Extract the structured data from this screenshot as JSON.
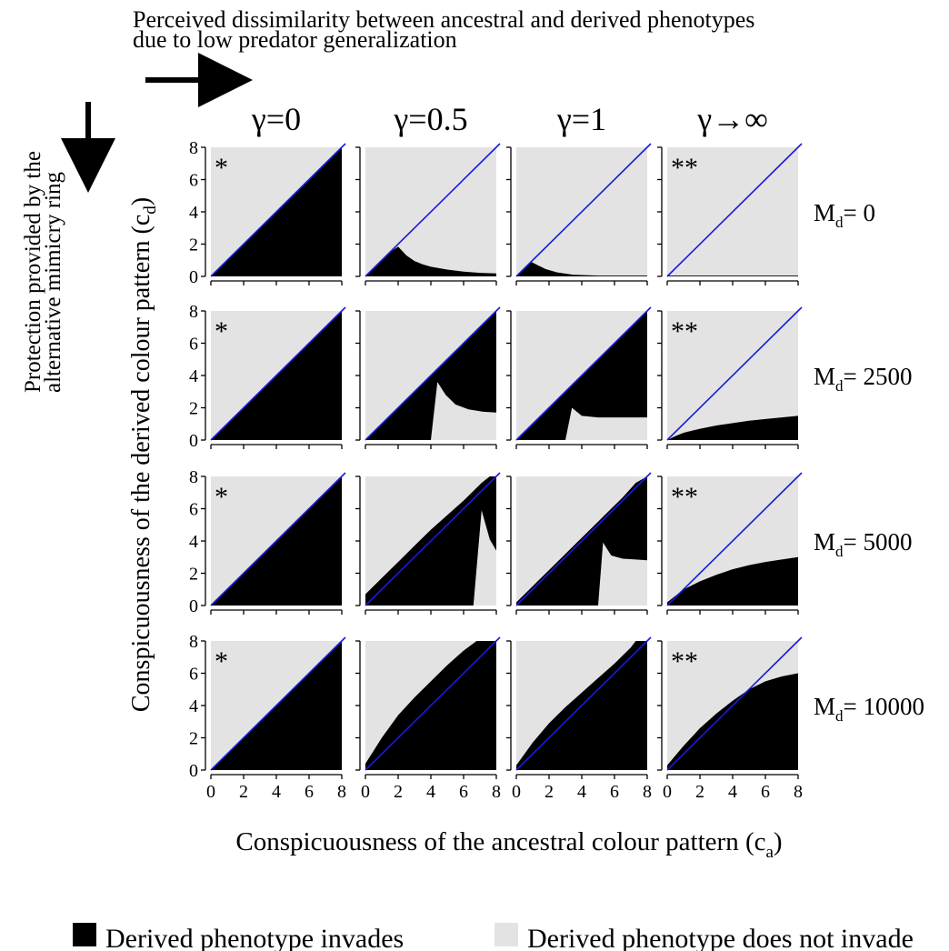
{
  "header": {
    "top_line1": "Perceived dissimilarity between ancestral and derived phenotypes",
    "top_line2": "due to low predator generalization",
    "left_line1": "Protection provided by the",
    "left_line2": "alternative mimicry ring"
  },
  "columns": [
    {
      "label": "γ=0"
    },
    {
      "label": "γ=0.5"
    },
    {
      "label": "γ=1"
    },
    {
      "label": "γ→∞"
    }
  ],
  "rows": [
    {
      "prefix": "M",
      "sub": "d",
      "value": "= 0"
    },
    {
      "prefix": "M",
      "sub": "d",
      "value": "= 2500"
    },
    {
      "prefix": "M",
      "sub": "d",
      "value": "= 5000"
    },
    {
      "prefix": "M",
      "sub": "d",
      "value": "= 10000"
    }
  ],
  "markers": [
    "*",
    "",
    "",
    "**"
  ],
  "colors": {
    "invades": "#000000",
    "not_invades": "#e3e3e3",
    "diagonal": "#1a1adc",
    "marker": "#c8871a"
  },
  "chart_data": {
    "type": "heatmap",
    "xlabel": {
      "main": "Conspicuousness of the ancestral colour pattern (c",
      "sub": "a",
      "close": ")"
    },
    "ylabel": {
      "main": "Conspicuousness of the derived colour pattern (c",
      "sub": "d",
      "close": ")"
    },
    "xlim": [
      0,
      8
    ],
    "ylim": [
      0,
      8
    ],
    "ticks": [
      0,
      2,
      4,
      6,
      8
    ],
    "tick_labels": [
      "0",
      "2",
      "4",
      "6",
      "8"
    ],
    "grid": false,
    "legend_position": "bottom",
    "legend": [
      {
        "label": "Derived phenotype invades",
        "color": "#000000"
      },
      {
        "label": "Derived phenotype does not invade",
        "color": "#e3e3e3"
      }
    ],
    "panels": [
      [
        {
          "col": "γ=0",
          "row": "M=0",
          "boundary_x": [
            0,
            8
          ],
          "upper": [
            0,
            8
          ],
          "lower": [
            0,
            0
          ]
        },
        {
          "col": "γ=0.5",
          "row": "M=0",
          "boundary_x": [
            0,
            0.5,
            1,
            1.5,
            2,
            2.5,
            3,
            3.5,
            4,
            5,
            6,
            7,
            8
          ],
          "upper": [
            0,
            0.5,
            1,
            1.5,
            1.85,
            1.3,
            0.95,
            0.75,
            0.6,
            0.42,
            0.3,
            0.22,
            0.18
          ],
          "lower": [
            0,
            0,
            0,
            0,
            0,
            0,
            0,
            0,
            0,
            0,
            0,
            0,
            0
          ]
        },
        {
          "col": "γ=1",
          "row": "M=0",
          "boundary_x": [
            0,
            0.5,
            0.9,
            1.3,
            1.8,
            2.5,
            3.5,
            5,
            8
          ],
          "upper": [
            0,
            0.5,
            0.9,
            0.7,
            0.45,
            0.25,
            0.1,
            0.05,
            0.05
          ],
          "lower": [
            0,
            0,
            0,
            0,
            0,
            0,
            0,
            0,
            0
          ]
        },
        {
          "col": "γ→∞",
          "row": "M=0",
          "boundary_x": [
            0,
            8
          ],
          "upper": [
            0.05,
            0.05
          ],
          "lower": [
            0,
            0
          ]
        }
      ],
      [
        {
          "col": "γ=0",
          "row": "M=2500",
          "boundary_x": [
            0,
            8
          ],
          "upper": [
            0,
            8
          ],
          "lower": [
            0,
            0
          ]
        },
        {
          "col": "γ=0.5",
          "row": "M=2500",
          "boundary_x": [
            0,
            1,
            2,
            3,
            4,
            4.4,
            4.9,
            5.5,
            6.3,
            7.2,
            8
          ],
          "upper": [
            0,
            1,
            2,
            3,
            4,
            4.4,
            4.9,
            5.5,
            6.3,
            7.2,
            8
          ],
          "lower": [
            0,
            0,
            0,
            0,
            0,
            3.6,
            2.8,
            2.2,
            1.9,
            1.75,
            1.7
          ]
        },
        {
          "col": "γ=1",
          "row": "M=2500",
          "boundary_x": [
            0,
            1,
            2,
            3,
            3.4,
            4,
            5,
            6,
            7,
            8
          ],
          "upper": [
            0,
            1,
            2,
            3,
            3.4,
            4,
            5,
            6,
            7,
            8
          ],
          "lower": [
            0,
            0,
            0,
            0,
            2.0,
            1.5,
            1.4,
            1.4,
            1.4,
            1.4
          ]
        },
        {
          "col": "γ→∞",
          "row": "M=2500",
          "boundary_x": [
            0,
            0.5,
            1,
            2,
            3,
            4,
            5,
            6,
            7,
            8
          ],
          "upper": [
            0,
            0.25,
            0.45,
            0.7,
            0.9,
            1.05,
            1.2,
            1.3,
            1.4,
            1.5
          ],
          "lower": [
            0,
            0,
            0,
            0,
            0,
            0,
            0,
            0,
            0,
            0
          ]
        }
      ],
      [
        {
          "col": "γ=0",
          "row": "M=5000",
          "boundary_x": [
            0,
            8
          ],
          "upper": [
            0,
            8
          ],
          "lower": [
            0,
            0
          ]
        },
        {
          "col": "γ=0.5",
          "row": "M=5000",
          "boundary_x": [
            0,
            1,
            2,
            3,
            4,
            5,
            6,
            6.6,
            7.1,
            7.6,
            8
          ],
          "upper": [
            0.7,
            1.7,
            2.7,
            3.7,
            4.7,
            5.6,
            6.5,
            7.1,
            7.6,
            8,
            8
          ],
          "lower": [
            0,
            0,
            0,
            0,
            0,
            0,
            0,
            0,
            5.9,
            4.1,
            3.4
          ]
        },
        {
          "col": "γ=1",
          "row": "M=5000",
          "boundary_x": [
            0,
            1,
            2,
            3,
            4,
            5,
            5.3,
            5.8,
            6.5,
            7.3,
            8
          ],
          "upper": [
            0.2,
            1.2,
            2.2,
            3.2,
            4.2,
            5.2,
            5.5,
            6.0,
            6.7,
            7.6,
            8
          ],
          "lower": [
            0,
            0,
            0,
            0,
            0,
            0,
            3.9,
            3.1,
            2.9,
            2.85,
            2.8
          ]
        },
        {
          "col": "γ→∞",
          "row": "M=5000",
          "boundary_x": [
            0,
            0.5,
            1,
            2,
            3,
            4,
            5,
            6,
            7,
            8
          ],
          "upper": [
            0.2,
            0.6,
            1.0,
            1.5,
            1.9,
            2.25,
            2.5,
            2.7,
            2.85,
            3.0
          ],
          "lower": [
            0,
            0,
            0,
            0,
            0,
            0,
            0,
            0,
            0,
            0
          ]
        }
      ],
      [
        {
          "col": "γ=0",
          "row": "M=10000",
          "boundary_x": [
            0,
            8
          ],
          "upper": [
            0,
            8
          ],
          "lower": [
            0,
            0
          ]
        },
        {
          "col": "γ=0.5",
          "row": "M=10000",
          "boundary_x": [
            0,
            0.5,
            1,
            2,
            3,
            4,
            5,
            6,
            6.8,
            8
          ],
          "upper": [
            0.4,
            1.2,
            2.0,
            3.4,
            4.5,
            5.5,
            6.5,
            7.4,
            8,
            8
          ],
          "lower": [
            0,
            0,
            0,
            0,
            0,
            0,
            0,
            0,
            0,
            0
          ]
        },
        {
          "col": "γ=1",
          "row": "M=10000",
          "boundary_x": [
            0,
            0.5,
            1,
            2,
            3,
            4,
            5,
            6,
            7,
            7.3,
            8
          ],
          "upper": [
            0.3,
            1.0,
            1.7,
            2.9,
            3.9,
            4.8,
            5.7,
            6.6,
            7.6,
            8,
            8
          ],
          "lower": [
            0,
            0,
            0,
            0,
            0,
            0,
            0,
            0,
            0,
            0,
            0
          ]
        },
        {
          "col": "γ→∞",
          "row": "M=10000",
          "boundary_x": [
            0,
            0.5,
            1,
            2,
            3,
            4,
            5,
            6,
            7,
            8
          ],
          "upper": [
            0.3,
            0.9,
            1.5,
            2.6,
            3.5,
            4.3,
            5.0,
            5.5,
            5.8,
            6.0
          ],
          "lower": [
            0,
            0,
            0,
            0,
            0,
            0,
            0,
            0,
            0,
            0
          ]
        }
      ]
    ]
  }
}
